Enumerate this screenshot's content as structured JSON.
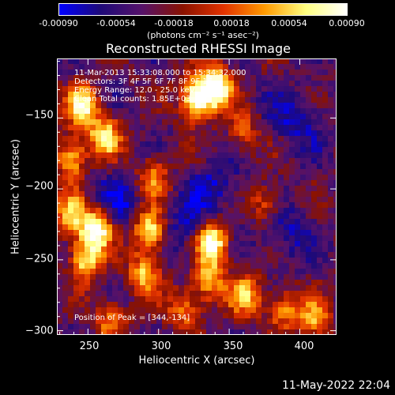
{
  "colorbar": {
    "ticks": [
      "-0.00090",
      "-0.00054",
      "-0.00018",
      "0.00018",
      "0.00054",
      "0.00090"
    ],
    "tick_values": [
      -0.0009,
      -0.00054,
      -0.00018,
      0.00018,
      0.00054,
      0.0009
    ],
    "units": "(photons cm⁻² s⁻¹ asec⁻²)",
    "colormap": [
      "#0000ff",
      "#1e0a78",
      "#55126a",
      "#8a1200",
      "#e23200",
      "#ff9a00",
      "#ffff80",
      "#ffffff"
    ]
  },
  "annotations": {
    "time": "11-Mar-2013 15:33:08.000 to 15:34:32.000",
    "detectors": "Detectors: 3F 4F 5F 6F 7F 8F 9F 1F",
    "energy": "Energy Range: 12.0 - 25.0 keV",
    "method": "Clean     Total counts: 1.85E+03",
    "peak": "Position of Peak = [344,-134]"
  },
  "footer": {
    "date": "11-May-2022 22:04"
  },
  "chart_data": {
    "type": "heatmap",
    "title": "Reconstructed RHESSI Image",
    "xlabel": "Heliocentric X (arcsec)",
    "ylabel": "Heliocentric Y (arcsec)",
    "xlim": [
      228,
      426
    ],
    "ylim": [
      -303,
      -108
    ],
    "x_ticks": [
      250,
      300,
      350,
      400
    ],
    "y_ticks": [
      -150,
      -200,
      -250,
      -300
    ],
    "x_tick_labels": [
      "250",
      "300",
      "350",
      "400"
    ],
    "y_tick_labels": [
      "−150",
      "−200",
      "−250",
      "−300"
    ],
    "peak": [
      344,
      -134
    ],
    "bright_sources": [
      {
        "x": 340,
        "y": -128,
        "level": 1.0
      },
      {
        "x": 326,
        "y": -137,
        "level": 0.85
      },
      {
        "x": 246,
        "y": -142,
        "level": 0.75
      },
      {
        "x": 262,
        "y": -163,
        "level": 0.7
      },
      {
        "x": 238,
        "y": -178,
        "level": 0.65
      },
      {
        "x": 256,
        "y": -228,
        "level": 0.9
      },
      {
        "x": 238,
        "y": -218,
        "level": 0.6
      },
      {
        "x": 248,
        "y": -250,
        "level": 0.7
      },
      {
        "x": 294,
        "y": -230,
        "level": 0.8
      },
      {
        "x": 290,
        "y": -260,
        "level": 0.6
      },
      {
        "x": 338,
        "y": -238,
        "level": 0.95
      },
      {
        "x": 336,
        "y": -265,
        "level": 0.55
      },
      {
        "x": 376,
        "y": -212,
        "level": 0.45
      },
      {
        "x": 362,
        "y": -275,
        "level": 0.6
      },
      {
        "x": 388,
        "y": -285,
        "level": 0.5
      },
      {
        "x": 410,
        "y": -292,
        "level": 0.55
      },
      {
        "x": 318,
        "y": -285,
        "level": 0.5
      },
      {
        "x": 266,
        "y": -292,
        "level": 0.45
      },
      {
        "x": 360,
        "y": -160,
        "level": 0.4
      },
      {
        "x": 296,
        "y": -192,
        "level": 0.5
      }
    ],
    "dark_regions": [
      {
        "x": 398,
        "y": -150
      },
      {
        "x": 388,
        "y": -230
      },
      {
        "x": 318,
        "y": -230
      },
      {
        "x": 270,
        "y": -208
      },
      {
        "x": 340,
        "y": -200
      }
    ]
  }
}
